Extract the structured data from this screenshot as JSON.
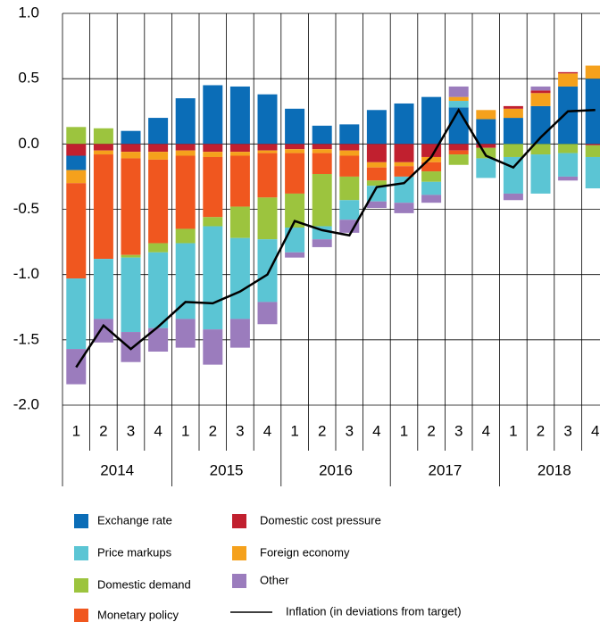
{
  "chart_data": {
    "type": "stacked_bar_line",
    "categories": [
      "1",
      "2",
      "3",
      "4",
      "1",
      "2",
      "3",
      "4",
      "1",
      "2",
      "3",
      "4",
      "1",
      "2",
      "3",
      "4",
      "1",
      "2",
      "3",
      "4"
    ],
    "groups": [
      "2014",
      "2015",
      "2016",
      "2017",
      "2018"
    ],
    "series": [
      {
        "name": "Exchange rate",
        "color": "#0b6db7",
        "values": [
          -0.11,
          0,
          0.1,
          0.2,
          0.35,
          0.45,
          0.44,
          0.38,
          0.27,
          0.14,
          0.15,
          0.26,
          0.31,
          0.36,
          0.28,
          0.19,
          0.2,
          0.29,
          0.44,
          0.5
        ]
      },
      {
        "name": "Price markups",
        "color": "#5bc5d4",
        "values": [
          -0.54,
          -0.46,
          -0.57,
          -0.58,
          -0.58,
          -0.79,
          -0.62,
          -0.48,
          -0.19,
          -0.1,
          -0.15,
          -0.12,
          -0.2,
          -0.1,
          0.05,
          -0.15,
          -0.28,
          -0.3,
          -0.18,
          -0.24
        ]
      },
      {
        "name": "Domestic demand",
        "color": "#9cc43e",
        "values": [
          0.13,
          0.12,
          -0.02,
          -0.07,
          -0.11,
          -0.07,
          -0.24,
          -0.32,
          -0.26,
          -0.4,
          -0.18,
          -0.04,
          0,
          -0.08,
          -0.08,
          -0.08,
          -0.1,
          -0.08,
          -0.07,
          -0.09
        ]
      },
      {
        "name": "Monetary policy",
        "color": "#f0571f",
        "values": [
          -0.73,
          -0.8,
          -0.74,
          -0.64,
          -0.56,
          -0.46,
          -0.39,
          -0.34,
          -0.31,
          -0.16,
          -0.16,
          -0.1,
          -0.08,
          -0.07,
          -0.03,
          0,
          0,
          0,
          0,
          0
        ]
      },
      {
        "name": "Domestic cost pressure",
        "color": "#c1202f",
        "values": [
          -0.09,
          -0.05,
          -0.06,
          -0.06,
          -0.05,
          -0.06,
          -0.06,
          -0.05,
          -0.04,
          -0.04,
          -0.05,
          -0.14,
          -0.14,
          -0.1,
          -0.05,
          -0.03,
          0.02,
          0.02,
          0.01,
          -0.01
        ]
      },
      {
        "name": "Foreign economy",
        "color": "#f5a11c",
        "values": [
          -0.1,
          -0.03,
          -0.05,
          -0.06,
          -0.04,
          -0.04,
          -0.03,
          -0.02,
          -0.03,
          -0.03,
          -0.04,
          -0.04,
          -0.03,
          -0.04,
          0.03,
          0.07,
          0.07,
          0.1,
          0.1,
          0.1
        ]
      },
      {
        "name": "Other",
        "color": "#9b7cbd",
        "values": [
          -0.27,
          -0.18,
          -0.23,
          -0.18,
          -0.22,
          -0.27,
          -0.22,
          -0.17,
          -0.04,
          -0.06,
          -0.1,
          -0.05,
          -0.08,
          -0.06,
          0.08,
          0,
          -0.05,
          0.03,
          -0.03,
          0
        ]
      }
    ],
    "line": {
      "name": "Inflation (in deviations from target)",
      "color": "#000000",
      "values": [
        -1.71,
        -1.39,
        -1.57,
        -1.4,
        -1.21,
        -1.22,
        -1.13,
        -1.0,
        -0.59,
        -0.66,
        -0.7,
        -0.33,
        -0.3,
        -0.1,
        0.26,
        -0.09,
        -0.18,
        0.05,
        0.25,
        0.26
      ]
    },
    "ylim": [
      -2.0,
      1.0
    ],
    "yticks": [
      {
        "value": 1.0,
        "label": "1.0"
      },
      {
        "value": 0.5,
        "label": "0.5"
      },
      {
        "value": 0.0,
        "label": "0.0"
      },
      {
        "value": -0.5,
        "label": "-0.5"
      },
      {
        "value": -1.0,
        "label": "-1.0"
      },
      {
        "value": -1.5,
        "label": "-1.5"
      },
      {
        "value": -2.0,
        "label": "-2.0"
      }
    ],
    "grid": true
  }
}
